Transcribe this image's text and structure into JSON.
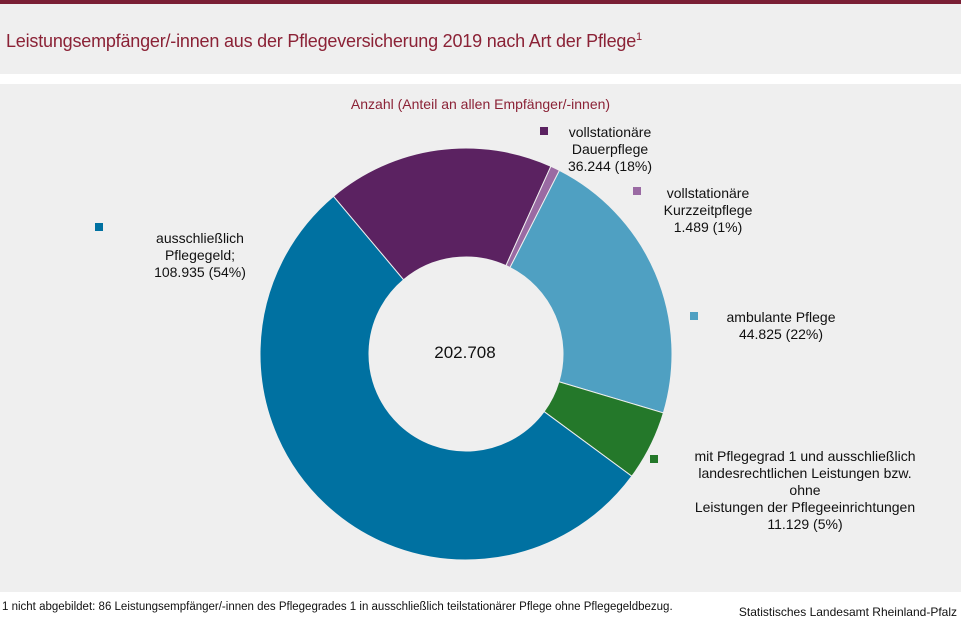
{
  "title": "Leistungsempfänger/-innen aus der Pflegeversicherung 2019 nach Art der Pflege",
  "title_sup": "1",
  "chart_data": {
    "type": "pie",
    "donut": true,
    "subtitle": "Anzahl (Anteil an allen Empfänger/-innen)",
    "total_label": "202.708",
    "total": 202708,
    "slices": [
      {
        "name": "vollstationäre Dauerpflege",
        "value": 36244,
        "share_pct": 18,
        "label_lines": [
          "vollstationäre",
          "Dauerpflege",
          "36.244 (18%)"
        ],
        "color": "#5b2261"
      },
      {
        "name": "vollstationäre Kurzzeitpflege",
        "value": 1489,
        "share_pct": 1,
        "label_lines": [
          "vollstationäre",
          "Kurzzeitpflege",
          "1.489 (1%)"
        ],
        "color": "#9a6aa3"
      },
      {
        "name": "ambulante Pflege",
        "value": 44825,
        "share_pct": 22,
        "label_lines": [
          "ambulante Pflege",
          "44.825 (22%)"
        ],
        "color": "#4fa0c2"
      },
      {
        "name": "mit Pflegegrad 1 und ausschließlich landesrechtlichen Leistungen bzw. ohne Leistungen der Pflegeeinrichtungen",
        "value": 11129,
        "share_pct": 5,
        "label_lines": [
          "mit Pflegegrad 1 und ausschließlich",
          "landesrechtlichen  Leistungen bzw.",
          "ohne",
          "Leistungen der Pflegeeinrichtungen",
          "11.129  (5%)"
        ],
        "color": "#24782a"
      },
      {
        "name": "ausschließlich Pflegegeld",
        "value": 108935,
        "share_pct": 54,
        "label_lines": [
          "ausschließlich",
          "Pflegegeld;",
          "108.935 (54%)"
        ],
        "color": "#0071a1"
      }
    ]
  },
  "footnote": "1 nicht abgebildet:  86 Leistungsempfänger/-innen   des Pflegegrades  1 in ausschließlich teilstationärer Pflege ohne Pflegegeldbezug.",
  "source": "Statistisches Landesamt Rheinland-Pfalz"
}
